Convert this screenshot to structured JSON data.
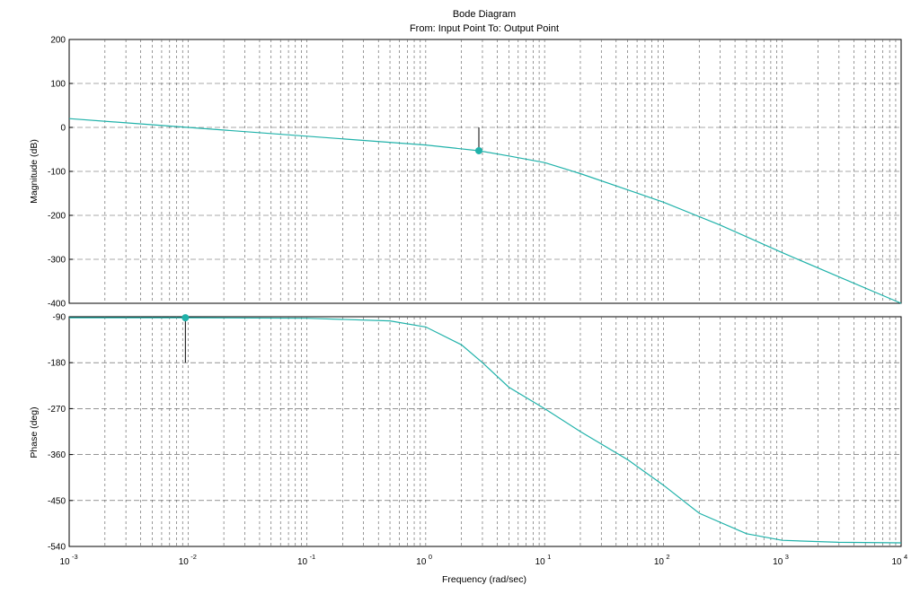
{
  "chart_data": {
    "type": "line",
    "title": "Bode Diagram",
    "subtitle": "From: Input Point  To: Output Point",
    "xlabel": "Frequency  (rad/sec)",
    "x_scale": "log",
    "xlim": [
      0.001,
      10000
    ],
    "x_tick_labels": [
      {
        "base": "10",
        "exp": "-3"
      },
      {
        "base": "10",
        "exp": "-2"
      },
      {
        "base": "10",
        "exp": "-1"
      },
      {
        "base": "10",
        "exp": "0"
      },
      {
        "base": "10",
        "exp": "1"
      },
      {
        "base": "10",
        "exp": "2"
      },
      {
        "base": "10",
        "exp": "3"
      },
      {
        "base": "10",
        "exp": "4"
      }
    ],
    "grid": true,
    "line_color": "#20b2aa",
    "magnitude": {
      "ylabel": "Magnitude (dB)",
      "ylim": [
        -400,
        200
      ],
      "yticks": [
        200,
        100,
        0,
        -100,
        -200,
        -300,
        -400
      ],
      "x": [
        0.001,
        0.01,
        0.1,
        1,
        2.8,
        5,
        10,
        20,
        50,
        100,
        300,
        1000,
        3000,
        10000
      ],
      "y": [
        20,
        0,
        -20,
        -40,
        -53,
        -65,
        -80,
        -105,
        -142,
        -170,
        -222,
        -285,
        -340,
        -400
      ],
      "marker": {
        "x": 2.8,
        "y": -53
      }
    },
    "phase": {
      "ylabel": "Phase (deg)",
      "ylim": [
        -540,
        -90
      ],
      "yticks": [
        -90,
        -180,
        -270,
        -360,
        -450,
        -540
      ],
      "x": [
        0.001,
        0.01,
        0.1,
        0.5,
        1,
        2,
        3,
        5,
        10,
        20,
        50,
        100,
        200,
        500,
        1000,
        3000,
        10000
      ],
      "y": [
        -92,
        -92,
        -93,
        -98,
        -110,
        -145,
        -180,
        -228,
        -270,
        -315,
        -370,
        -420,
        -475,
        -515,
        -528,
        -532,
        -533
      ],
      "marker": {
        "x": 0.0095,
        "y": -92
      }
    }
  }
}
